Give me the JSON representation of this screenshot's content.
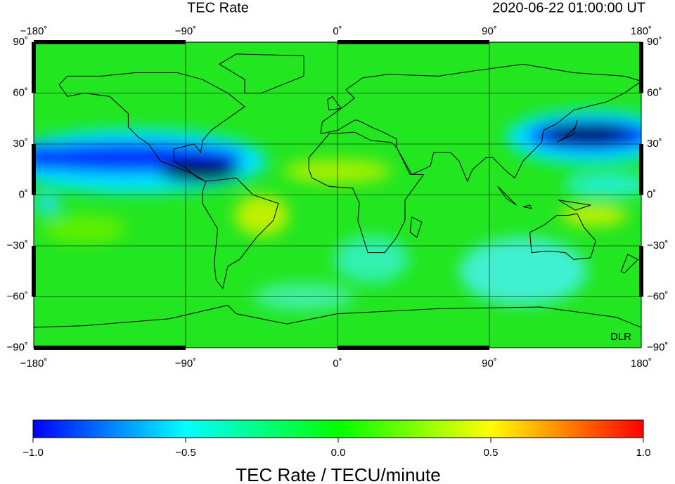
{
  "map": {
    "title": "TEC Rate",
    "timestamp": "2020-06-22  01:00:00 UT",
    "watermark": "DLR",
    "xlim": [
      -180,
      180
    ],
    "ylim": [
      -90,
      90
    ],
    "xticks": [
      {
        "value": -180,
        "label": "−180˚"
      },
      {
        "value": -90,
        "label": "−90˚"
      },
      {
        "value": 0,
        "label": "0˚"
      },
      {
        "value": 90,
        "label": "90˚"
      },
      {
        "value": 180,
        "label": "180˚"
      }
    ],
    "yticks": [
      {
        "value": 90,
        "label": "90˚"
      },
      {
        "value": 60,
        "label": "60˚"
      },
      {
        "value": 30,
        "label": "30˚"
      },
      {
        "value": 0,
        "label": "0˚"
      },
      {
        "value": -30,
        "label": "−30˚"
      },
      {
        "value": -60,
        "label": "−60˚"
      },
      {
        "value": -90,
        "label": "−90˚"
      }
    ],
    "grid": true
  },
  "colorbar": {
    "label": "TEC Rate / TECU/minute",
    "lim": [
      -1,
      1
    ],
    "ticks": [
      {
        "value": -1,
        "label": "−1.0"
      },
      {
        "value": -0.5,
        "label": "−0.5"
      },
      {
        "value": 0,
        "label": "0.0"
      },
      0.5,
      {
        "value": 1,
        "label": "1.0"
      }
    ],
    "colors": [
      "#0000ff",
      "#00ffff",
      "#00ff00",
      "#ffff00",
      "#ff0000"
    ]
  }
}
